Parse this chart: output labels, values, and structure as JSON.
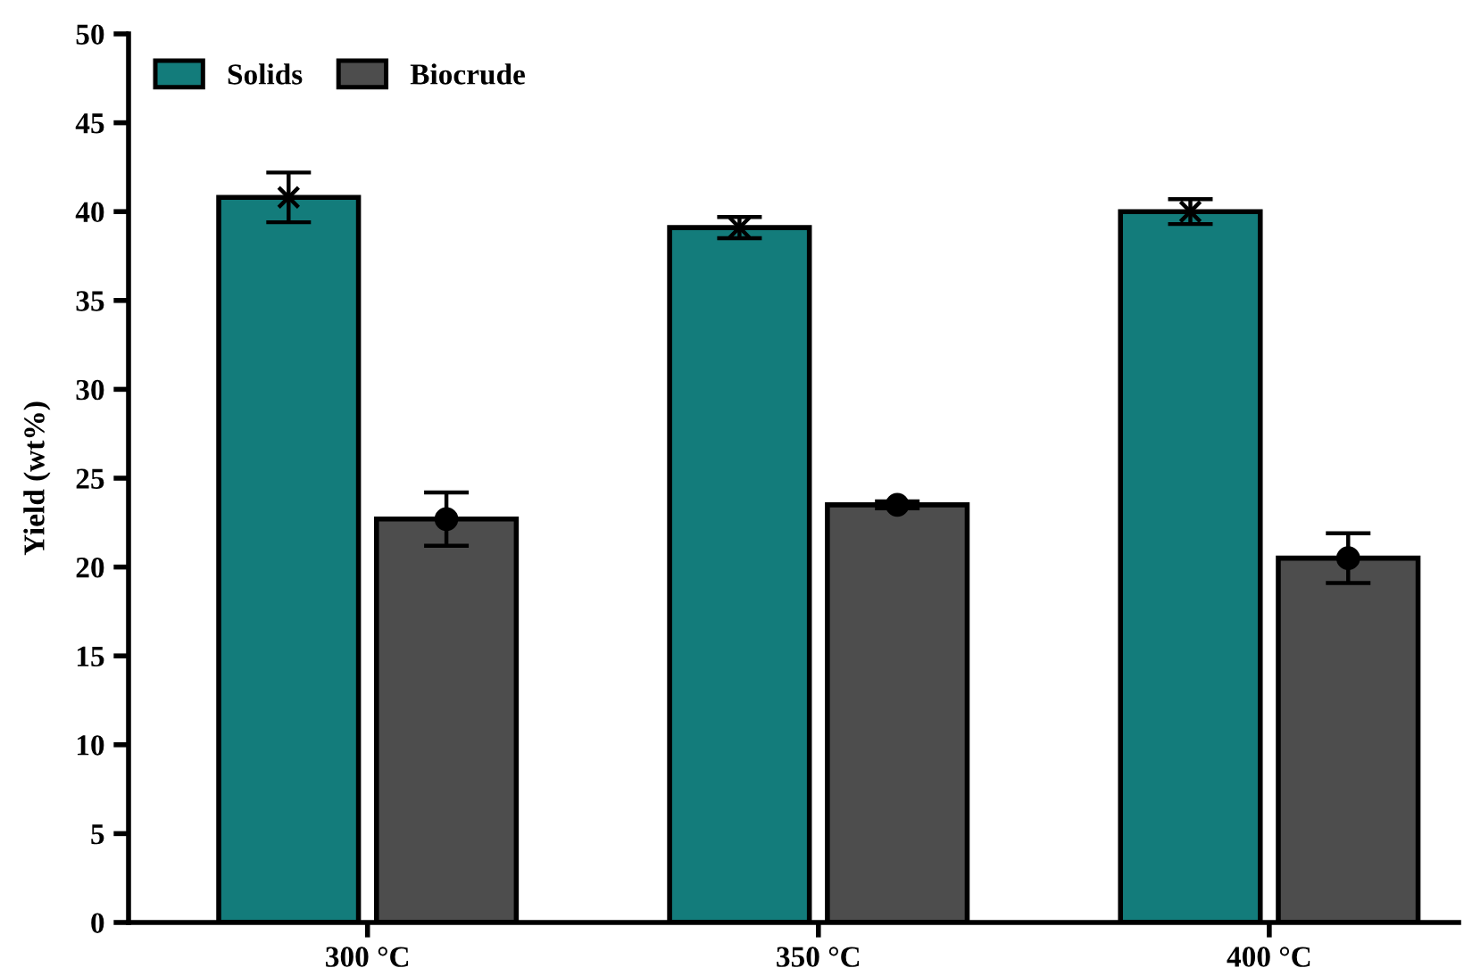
{
  "chart_data": {
    "type": "bar",
    "ylabel": "Yield (wt%)",
    "categories": [
      "300 °C",
      "350 °C",
      "400 °C"
    ],
    "series": [
      {
        "name": "Solids",
        "color": "#137c7b",
        "values": [
          40.8,
          39.1,
          40.0
        ]
      },
      {
        "name": "Biocrude",
        "color": "#4d4d4d",
        "values": [
          22.7,
          23.5,
          20.5
        ]
      },
      {
        "type": "scatter",
        "color": "#000000",
        "x": [
          "300 °C",
          "350 °C",
          "400 °C"
        ],
        "values": [
          40.8,
          39.1,
          40.0
        ],
        "errors": [
          1.4,
          0.6,
          0.7
        ],
        "marker": "cross"
      },
      {
        "type": "scatter",
        "color": "#000000",
        "x": [
          "300 °C",
          "350 °C",
          "400 °C"
        ],
        "values": [
          22.7,
          23.5,
          20.5
        ],
        "errors": [
          1.5,
          0.2,
          1.4
        ],
        "marker": "circle"
      }
    ],
    "ylim": [
      0,
      50
    ],
    "yticks": [
      0,
      5,
      10,
      15,
      20,
      25,
      30,
      35,
      40,
      45,
      50
    ],
    "grid": false,
    "legend": "top left"
  }
}
